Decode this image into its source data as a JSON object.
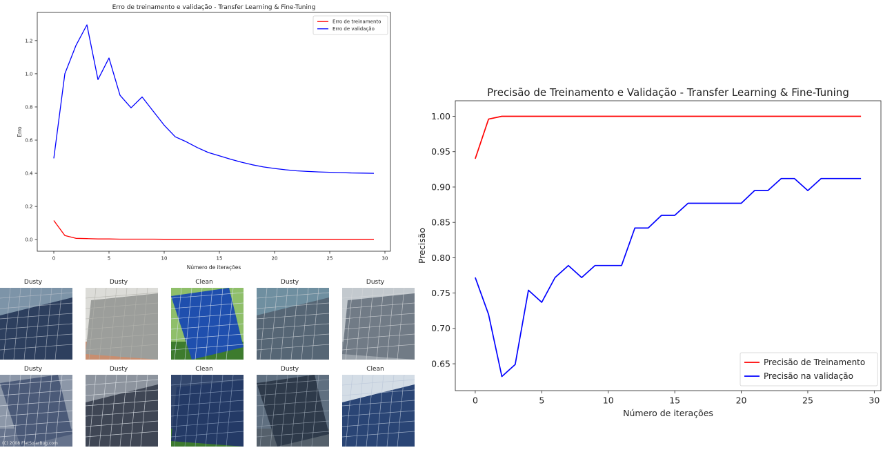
{
  "charts": [
    {
      "type": "line",
      "title": "Erro de treinamento e validação - Transfer Learning & Fine-Tuning",
      "xlabel": "Número de iterações",
      "ylabel": "Erro",
      "xlim": [
        -1.5,
        30.5
      ],
      "ylim": [
        -0.07,
        1.37
      ],
      "xticks": [
        0,
        5,
        10,
        15,
        20,
        25,
        30
      ],
      "yticks": [
        0.0,
        0.2,
        0.4,
        0.6,
        0.8,
        1.0,
        1.2
      ],
      "legend_position": "top-right",
      "x": [
        0,
        1,
        2,
        3,
        4,
        5,
        6,
        7,
        8,
        9,
        10,
        11,
        12,
        13,
        14,
        15,
        16,
        17,
        18,
        19,
        20,
        21,
        22,
        23,
        24,
        25,
        26,
        27,
        28,
        29
      ],
      "series": [
        {
          "name": "Erro de treinamento",
          "color": "#ff0000",
          "values": [
            0.115,
            0.025,
            0.008,
            0.006,
            0.004,
            0.004,
            0.003,
            0.003,
            0.003,
            0.003,
            0.002,
            0.002,
            0.002,
            0.002,
            0.002,
            0.002,
            0.002,
            0.002,
            0.002,
            0.002,
            0.002,
            0.002,
            0.002,
            0.002,
            0.002,
            0.002,
            0.002,
            0.002,
            0.002,
            0.002
          ]
        },
        {
          "name": "Erro de validação",
          "color": "#0000ff",
          "values": [
            0.49,
            1.0,
            1.17,
            1.295,
            0.965,
            1.095,
            0.87,
            0.795,
            0.86,
            0.775,
            0.69,
            0.62,
            0.59,
            0.555,
            0.525,
            0.505,
            0.485,
            0.467,
            0.451,
            0.438,
            0.429,
            0.421,
            0.415,
            0.411,
            0.408,
            0.406,
            0.404,
            0.402,
            0.401,
            0.4
          ]
        }
      ]
    },
    {
      "type": "line",
      "title": "Precisão de Treinamento e Validação - Transfer Learning & Fine-Tuning",
      "xlabel": "Número de iterações",
      "ylabel": "Precisão",
      "xlim": [
        -1.5,
        30.5
      ],
      "ylim": [
        0.612,
        1.022
      ],
      "xticks": [
        0,
        5,
        10,
        15,
        20,
        25,
        30
      ],
      "yticks": [
        0.65,
        0.7,
        0.75,
        0.8,
        0.85,
        0.9,
        0.95,
        1.0
      ],
      "legend_position": "lower-right",
      "x": [
        0,
        1,
        2,
        3,
        4,
        5,
        6,
        7,
        8,
        9,
        10,
        11,
        12,
        13,
        14,
        15,
        16,
        17,
        18,
        19,
        20,
        21,
        22,
        23,
        24,
        25,
        26,
        27,
        28,
        29
      ],
      "series": [
        {
          "name": "Precisão de Treinamento",
          "color": "#ff0000",
          "values": [
            0.94,
            0.996,
            1.0,
            1.0,
            1.0,
            1.0,
            1.0,
            1.0,
            1.0,
            1.0,
            1.0,
            1.0,
            1.0,
            1.0,
            1.0,
            1.0,
            1.0,
            1.0,
            1.0,
            1.0,
            1.0,
            1.0,
            1.0,
            1.0,
            1.0,
            1.0,
            1.0,
            1.0,
            1.0,
            1.0
          ]
        },
        {
          "name": "Precisão na validação",
          "color": "#0000ff",
          "values": [
            0.772,
            0.72,
            0.632,
            0.649,
            0.754,
            0.737,
            0.772,
            0.789,
            0.772,
            0.789,
            0.789,
            0.789,
            0.842,
            0.842,
            0.86,
            0.86,
            0.877,
            0.877,
            0.877,
            0.877,
            0.877,
            0.895,
            0.895,
            0.912,
            0.912,
            0.895,
            0.912,
            0.912,
            0.912,
            0.912
          ]
        }
      ]
    }
  ],
  "gallery": {
    "watermark": "(C) 2008 FlatSolarBug.com",
    "items": [
      {
        "label": "Dusty",
        "sky": "#7d94a8",
        "panel": "#2d3f5e",
        "grid": "#b6bec9",
        "tone": "#6f7a86"
      },
      {
        "label": "Dusty",
        "sky": "#dcdcd8",
        "panel": "#9c9e9b",
        "grid": "#b3b3ad",
        "tone": "#c88e70"
      },
      {
        "label": "Clean",
        "sky": "#8fbf6a",
        "panel": "#1f4fae",
        "grid": "#d8e2f0",
        "tone": "#3d7b2e"
      },
      {
        "label": "Dusty",
        "sky": "#6f8fa0",
        "panel": "#566675",
        "grid": "#c9ced3",
        "tone": "#8b96a0"
      },
      {
        "label": "Dusty",
        "sky": "#c3c9ce",
        "panel": "#717b86",
        "grid": "#d4d7da",
        "tone": "#9aa2aa"
      },
      {
        "label": "Dusty",
        "sky": "#8c97a8",
        "panel": "#4b5a78",
        "grid": "#d8dde6",
        "tone": "#66738c"
      },
      {
        "label": "Dusty",
        "sky": "#8d949e",
        "panel": "#3f4654",
        "grid": "#dfe3e8",
        "tone": "#777d88"
      },
      {
        "label": "Clean",
        "sky": "#33476d",
        "panel": "#243a66",
        "grid": "#8fa2c2",
        "tone": "#3d7a2e"
      },
      {
        "label": "Dusty",
        "sky": "#5f6f80",
        "panel": "#2e3a4a",
        "grid": "#9aa5b1",
        "tone": "#55606b"
      },
      {
        "label": "Clean",
        "sky": "#d4dde6",
        "panel": "#2a4575",
        "grid": "#b9c6d8",
        "tone": "#b8926d"
      }
    ]
  }
}
